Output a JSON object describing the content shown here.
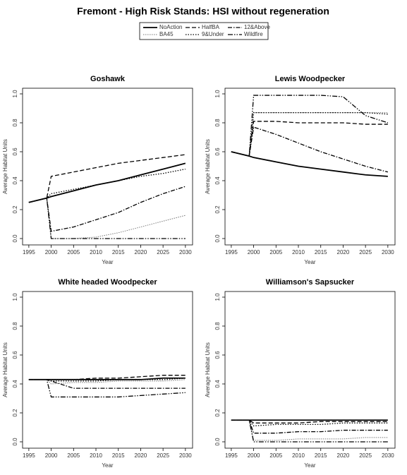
{
  "title": "Fremont  - High Risk Stands: HSI without regeneration",
  "legend": [
    {
      "name": "NoAction",
      "color": "#000000",
      "width": 1.8,
      "dash": "none"
    },
    {
      "name": "BA45",
      "color": "#777777",
      "width": 1,
      "dash": "1.5,1.5"
    },
    {
      "name": "HalfBA",
      "color": "#000000",
      "width": 1.3,
      "dash": "6,3"
    },
    {
      "name": "9&Under",
      "color": "#000000",
      "width": 1.3,
      "dash": "1.5,2"
    },
    {
      "name": "12&Above",
      "color": "#000000",
      "width": 1.3,
      "dash": "6,2,1.5,2"
    },
    {
      "name": "Wildfire",
      "color": "#000000",
      "width": 1.3,
      "dash": "7,2,1.5,2,1.5,2"
    }
  ],
  "chart_data": [
    {
      "type": "line",
      "title": "Goshawk",
      "xlabel": "Year",
      "ylabel": "Average Habitat Units",
      "x": [
        1995,
        1999,
        2000,
        2005,
        2010,
        2015,
        2020,
        2025,
        2030
      ],
      "xlim": [
        1993.6,
        2031.6
      ],
      "ylim": [
        -0.044,
        1.039
      ],
      "xticks": [
        1995,
        2000,
        2005,
        2010,
        2015,
        2020,
        2025,
        2030
      ],
      "yticks": [
        {
          "value": 0,
          "label": "0.0"
        },
        0.2,
        0.4,
        0.6,
        0.8,
        {
          "value": 1,
          "label": "1.0"
        }
      ],
      "series": [
        {
          "values": [
            0.25,
            0.28,
            0.29,
            0.33,
            0.37,
            0.4,
            0.44,
            0.48,
            0.52
          ]
        },
        {
          "values": [
            0.25,
            0.28,
            0.0,
            0.0,
            0.01,
            0.04,
            0.08,
            0.12,
            0.16
          ]
        },
        {
          "values": [
            0.25,
            0.28,
            0.43,
            0.46,
            0.49,
            0.52,
            0.54,
            0.56,
            0.58
          ]
        },
        {
          "values": [
            0.25,
            0.28,
            0.31,
            0.34,
            0.37,
            0.4,
            0.43,
            0.45,
            0.48
          ]
        },
        {
          "values": [
            0.25,
            0.28,
            0.05,
            0.08,
            0.13,
            0.18,
            0.25,
            0.31,
            0.36
          ]
        },
        {
          "values": [
            0.25,
            0.28,
            0.0,
            0.0,
            0.0,
            0.0,
            0.0,
            0.0,
            0.0
          ]
        }
      ]
    },
    {
      "type": "line",
      "title": "Lewis Woodpecker",
      "xlabel": "Year",
      "ylabel": "Average Habitat Units",
      "x": [
        1995,
        1999,
        2000,
        2005,
        2010,
        2015,
        2020,
        2025,
        2030
      ],
      "xlim": [
        1993.6,
        2031.6
      ],
      "ylim": [
        -0.044,
        1.039
      ],
      "xticks": [
        1995,
        2000,
        2005,
        2010,
        2015,
        2020,
        2025,
        2030
      ],
      "yticks": [
        {
          "value": 0,
          "label": "0.0"
        },
        0.2,
        0.4,
        0.6,
        0.8,
        {
          "value": 1,
          "label": "1.0"
        }
      ],
      "series": [
        {
          "values": [
            0.6,
            0.57,
            0.56,
            0.53,
            0.5,
            0.48,
            0.46,
            0.44,
            0.43
          ]
        },
        {
          "values": [
            0.6,
            0.57,
            0.87,
            0.87,
            0.87,
            0.87,
            0.87,
            0.87,
            0.87
          ]
        },
        {
          "values": [
            0.6,
            0.57,
            0.81,
            0.81,
            0.8,
            0.8,
            0.8,
            0.79,
            0.79
          ]
        },
        {
          "values": [
            0.6,
            0.57,
            0.87,
            0.87,
            0.87,
            0.87,
            0.87,
            0.87,
            0.86
          ]
        },
        {
          "values": [
            0.6,
            0.57,
            0.77,
            0.72,
            0.66,
            0.6,
            0.55,
            0.5,
            0.46
          ]
        },
        {
          "values": [
            0.6,
            0.57,
            0.99,
            0.99,
            0.99,
            0.99,
            0.98,
            0.85,
            0.8
          ]
        }
      ]
    },
    {
      "type": "line",
      "title": "White headed Woodpecker",
      "xlabel": "Year",
      "ylabel": "Average Habitat Units",
      "x": [
        1995,
        1999,
        2000,
        2005,
        2010,
        2015,
        2020,
        2025,
        2030
      ],
      "xlim": [
        1993.6,
        2031.6
      ],
      "ylim": [
        -0.044,
        1.039
      ],
      "xticks": [
        1995,
        2000,
        2005,
        2010,
        2015,
        2020,
        2025,
        2030
      ],
      "yticks": [
        {
          "value": 0,
          "label": "0.0"
        },
        0.2,
        0.4,
        0.6,
        0.8,
        {
          "value": 1,
          "label": "1.0"
        }
      ],
      "series": [
        {
          "values": [
            0.43,
            0.43,
            0.43,
            0.43,
            0.43,
            0.43,
            0.43,
            0.44,
            0.44
          ]
        },
        {
          "values": [
            0.43,
            0.43,
            0.4,
            0.41,
            0.41,
            0.42,
            0.42,
            0.42,
            0.43
          ]
        },
        {
          "values": [
            0.43,
            0.43,
            0.43,
            0.43,
            0.44,
            0.44,
            0.45,
            0.46,
            0.46
          ]
        },
        {
          "values": [
            0.43,
            0.43,
            0.42,
            0.42,
            0.42,
            0.43,
            0.43,
            0.43,
            0.44
          ]
        },
        {
          "values": [
            0.43,
            0.43,
            0.42,
            0.37,
            0.37,
            0.37,
            0.37,
            0.37,
            0.37
          ]
        },
        {
          "values": [
            0.43,
            0.43,
            0.31,
            0.31,
            0.31,
            0.31,
            0.32,
            0.33,
            0.34
          ]
        }
      ]
    },
    {
      "type": "line",
      "title": "Williamson's Sapsucker",
      "xlabel": "Year",
      "ylabel": "Average Habitat Units",
      "x": [
        1995,
        1999,
        2000,
        2005,
        2010,
        2015,
        2020,
        2025,
        2030
      ],
      "xlim": [
        1993.6,
        2031.6
      ],
      "ylim": [
        -0.044,
        1.039
      ],
      "xticks": [
        1995,
        2000,
        2005,
        2010,
        2015,
        2020,
        2025,
        2030
      ],
      "yticks": [
        {
          "value": 0,
          "label": "0.0"
        },
        0.2,
        0.4,
        0.6,
        0.8,
        {
          "value": 1,
          "label": "1.0"
        }
      ],
      "series": [
        {
          "values": [
            0.15,
            0.15,
            0.15,
            0.15,
            0.15,
            0.15,
            0.15,
            0.15,
            0.15
          ]
        },
        {
          "values": [
            0.15,
            0.15,
            0.01,
            0.01,
            0.02,
            0.02,
            0.02,
            0.03,
            0.03
          ]
        },
        {
          "values": [
            0.15,
            0.15,
            0.13,
            0.13,
            0.13,
            0.14,
            0.14,
            0.14,
            0.14
          ]
        },
        {
          "values": [
            0.15,
            0.15,
            0.11,
            0.12,
            0.12,
            0.12,
            0.13,
            0.13,
            0.13
          ]
        },
        {
          "values": [
            0.15,
            0.15,
            0.06,
            0.06,
            0.07,
            0.07,
            0.08,
            0.08,
            0.08
          ]
        },
        {
          "values": [
            0.15,
            0.15,
            0.0,
            0.0,
            0.0,
            0.0,
            0.0,
            0.0,
            0.0
          ]
        }
      ]
    }
  ]
}
